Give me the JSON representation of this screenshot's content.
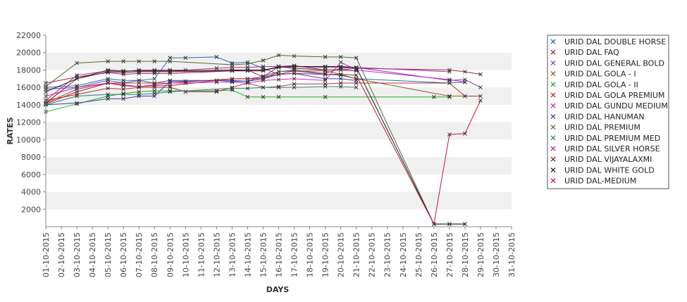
{
  "chart_data": {
    "type": "line",
    "title": "",
    "xlabel": "DAYS",
    "ylabel": "RATES",
    "ylim": [
      0,
      22000
    ],
    "yticks": [
      2000,
      4000,
      6000,
      8000,
      10000,
      12000,
      14000,
      16000,
      18000,
      20000,
      22000
    ],
    "grid": "alternating horizontal bands",
    "legend_position": "right",
    "categories": [
      "01-10-2015",
      "02-10-2015",
      "03-10-2015",
      "04-10-2015",
      "05-10-2015",
      "06-10-2015",
      "07-10-2015",
      "08-10-2015",
      "09-10-2015",
      "10-10-2015",
      "11-10-2015",
      "12-10-2015",
      "13-10-2015",
      "14-10-2015",
      "15-10-2015",
      "16-10-2015",
      "17-10-2015",
      "18-10-2015",
      "19-10-2015",
      "20-10-2015",
      "21-10-2015",
      "22-10-2015",
      "23-10-2015",
      "24-10-2015",
      "25-10-2015",
      "26-10-2015",
      "27-10-2015",
      "28-10-2015",
      "29-10-2015",
      "30-10-2015",
      "31-10-2015"
    ],
    "series": [
      {
        "name": "URID DAL DOUBLE HORSE",
        "color": "#2a6ea8",
        "values": [
          16000,
          null,
          16200,
          null,
          17000,
          16800,
          16800,
          17000,
          19400,
          19400,
          null,
          19500,
          18800,
          18900,
          18200,
          17500,
          17900,
          null,
          17500,
          17400,
          17000,
          null,
          null,
          null,
          null,
          null,
          16500,
          16600,
          null,
          null,
          null
        ]
      },
      {
        "name": "URID DAL FAQ",
        "color": "#a0205a",
        "values": [
          16500,
          null,
          17200,
          null,
          17700,
          17500,
          17600,
          17600,
          17600,
          null,
          null,
          null,
          17900,
          18000,
          17200,
          18400,
          18500,
          null,
          18000,
          18000,
          18200,
          null,
          null,
          null,
          null,
          null,
          18000,
          17800,
          17500,
          null,
          null
        ]
      },
      {
        "name": "URID DAL GENERAL BOLD",
        "color": "#7a3fb0",
        "values": [
          15800,
          null,
          16000,
          null,
          16800,
          16500,
          16800,
          16500,
          16800,
          null,
          null,
          null,
          16800,
          16700,
          17300,
          17800,
          18000,
          null,
          17600,
          18200,
          18300,
          null,
          null,
          null,
          null,
          null,
          16800,
          16900,
          16000,
          null,
          null
        ]
      },
      {
        "name": "URID DAL GOLA - I",
        "color": "#8a5a20",
        "values": [
          14200,
          null,
          15800,
          null,
          16500,
          16500,
          16500,
          16500,
          16500,
          null,
          null,
          null,
          17000,
          17000,
          17000,
          17800,
          17900,
          null,
          17900,
          17500,
          17000,
          null,
          null,
          null,
          null,
          null,
          15000,
          15000,
          null,
          null,
          null
        ]
      },
      {
        "name": "URID DAL GOLA - II",
        "color": "#22aa22",
        "values": [
          13200,
          null,
          14100,
          null,
          15000,
          15300,
          15500,
          15600,
          15600,
          null,
          null,
          15600,
          15700,
          14900,
          14900,
          14900,
          null,
          null,
          14900,
          null,
          null,
          null,
          null,
          null,
          null,
          14900,
          14900,
          null,
          null,
          null,
          null
        ]
      },
      {
        "name": "URID DAL GOLA PREMIUM",
        "color": "#b83030",
        "values": [
          14500,
          null,
          15200,
          null,
          15900,
          15800,
          16000,
          16000,
          16000,
          15500,
          null,
          15500,
          16000,
          16500,
          16000,
          16100,
          16400,
          null,
          16400,
          16500,
          16500,
          null,
          null,
          null,
          null,
          null,
          16500,
          15000,
          15000,
          null,
          null
        ]
      },
      {
        "name": "URID DAL GUNDU MEDIUM",
        "color": "#cc22cc",
        "values": [
          15000,
          null,
          16000,
          null,
          16500,
          16300,
          16100,
          16300,
          16500,
          16500,
          null,
          16600,
          16600,
          16500,
          16800,
          16900,
          17000,
          null,
          16800,
          18900,
          18000,
          null,
          null,
          null,
          null,
          null,
          16900,
          16600,
          null,
          null,
          null
        ]
      },
      {
        "name": "URID DAL HANUMAN",
        "color": "#3344aa",
        "values": [
          14000,
          null,
          14200,
          null,
          14700,
          14700,
          15000,
          15000,
          16700,
          16700,
          null,
          16800,
          16700,
          16700,
          17000,
          17500,
          17600,
          null,
          17000,
          17000,
          16800,
          null,
          null,
          null,
          null,
          null,
          null,
          null,
          null,
          null,
          null
        ]
      },
      {
        "name": "URID DAL PREMIUM",
        "color": "#556b2f",
        "values": [
          16100,
          null,
          18800,
          null,
          19000,
          19000,
          19000,
          19000,
          19000,
          null,
          null,
          null,
          18600,
          18700,
          19100,
          19700,
          19600,
          null,
          19500,
          19500,
          19400,
          null,
          null,
          null,
          null,
          300,
          300,
          300,
          null,
          null,
          null
        ]
      },
      {
        "name": "URID DAL PREMIUM MED",
        "color": "#2e7d7d",
        "values": [
          14000,
          null,
          15000,
          null,
          15200,
          15200,
          15200,
          15300,
          15500,
          null,
          null,
          null,
          15900,
          15900,
          16000,
          16000,
          16000,
          null,
          16100,
          16100,
          16000,
          null,
          null,
          null,
          null,
          null,
          null,
          null,
          null,
          null,
          null
        ]
      },
      {
        "name": "URID DAL SILVER HORSE",
        "color": "#aa3399",
        "values": [
          14500,
          null,
          17400,
          null,
          17900,
          17800,
          18000,
          18000,
          18000,
          18000,
          null,
          18200,
          18300,
          18300,
          18400,
          18400,
          18400,
          null,
          18300,
          18300,
          18300,
          null,
          null,
          null,
          null,
          null,
          17800,
          null,
          null,
          null,
          null
        ]
      },
      {
        "name": "URID DAL VIJAYALAXMI",
        "color": "#7a1f1f",
        "values": [
          14200,
          null,
          17000,
          null,
          17800,
          17700,
          17800,
          17800,
          17800,
          null,
          null,
          null,
          17900,
          17900,
          17900,
          18400,
          18200,
          null,
          18000,
          18000,
          17900,
          null,
          null,
          null,
          null,
          null,
          null,
          null,
          null,
          null,
          null
        ]
      },
      {
        "name": "URID DAL WHITE GOLD",
        "color": "#1a1a2e",
        "values": [
          15500,
          null,
          17000,
          null,
          18000,
          17900,
          17900,
          17900,
          17900,
          null,
          null,
          null,
          18000,
          18000,
          18000,
          18300,
          18400,
          null,
          18400,
          18400,
          18300,
          null,
          null,
          null,
          null,
          300,
          300,
          300,
          null,
          null,
          null
        ]
      },
      {
        "name": "URID DAL-MEDIUM",
        "color": "#c0183c",
        "values": [
          14100,
          null,
          15500,
          null,
          16500,
          16200,
          16100,
          16200,
          16200,
          null,
          null,
          null,
          17000,
          17000,
          17200,
          17500,
          17600,
          null,
          17500,
          17500,
          17400,
          null,
          null,
          null,
          null,
          300,
          10600,
          10700,
          14500,
          null,
          null
        ]
      }
    ]
  }
}
